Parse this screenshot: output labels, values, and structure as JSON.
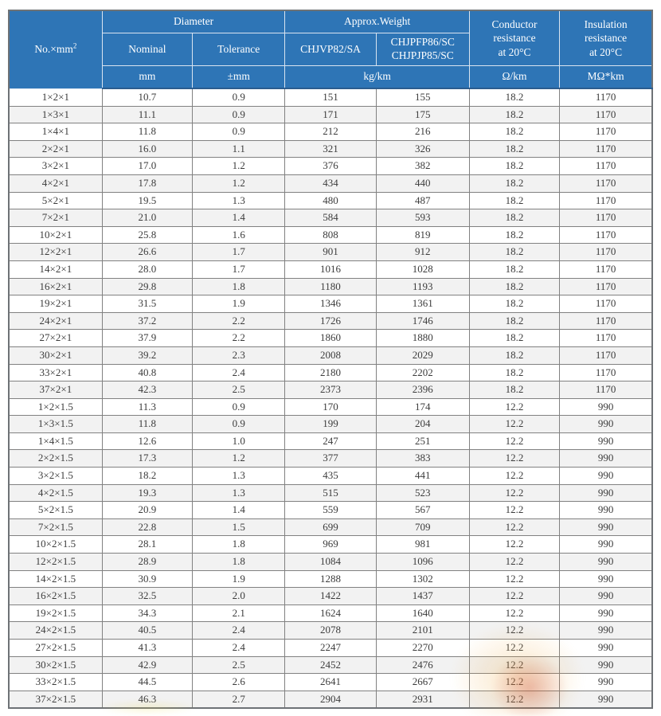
{
  "header": {
    "no_col": {
      "base": "No.×mm",
      "sup": "2"
    },
    "groups": {
      "diameter": "Diameter",
      "weight": "Approx.Weight"
    },
    "subs": {
      "nominal": "Nominal",
      "tolerance": "Tolerance",
      "weight_a": "CHJVP82/SA",
      "weight_b": "CHJPFP86/SC\nCHJPJP85/SC",
      "conductor": "Conductor\nresistance\nat 20°C",
      "insulation": "Insulation\nresistance\nat 20°C"
    },
    "units": {
      "mm": "mm",
      "tolerance": "±mm",
      "weight": "kg/km",
      "conductor": "Ω/km",
      "insulation": "MΩ*km"
    }
  },
  "table": {
    "column_keys": [
      "no",
      "nominal-diameter",
      "tolerance",
      "weight-chjvp82",
      "weight-chjpfp86",
      "conductor-resistance",
      "insulation-resistance"
    ],
    "rows": [
      [
        "1×2×1",
        "10.7",
        "0.9",
        "151",
        "155",
        "18.2",
        "1170"
      ],
      [
        "1×3×1",
        "11.1",
        "0.9",
        "171",
        "175",
        "18.2",
        "1170"
      ],
      [
        "1×4×1",
        "11.8",
        "0.9",
        "212",
        "216",
        "18.2",
        "1170"
      ],
      [
        "2×2×1",
        "16.0",
        "1.1",
        "321",
        "326",
        "18.2",
        "1170"
      ],
      [
        "3×2×1",
        "17.0",
        "1.2",
        "376",
        "382",
        "18.2",
        "1170"
      ],
      [
        "4×2×1",
        "17.8",
        "1.2",
        "434",
        "440",
        "18.2",
        "1170"
      ],
      [
        "5×2×1",
        "19.5",
        "1.3",
        "480",
        "487",
        "18.2",
        "1170"
      ],
      [
        "7×2×1",
        "21.0",
        "1.4",
        "584",
        "593",
        "18.2",
        "1170"
      ],
      [
        "10×2×1",
        "25.8",
        "1.6",
        "808",
        "819",
        "18.2",
        "1170"
      ],
      [
        "12×2×1",
        "26.6",
        "1.7",
        "901",
        "912",
        "18.2",
        "1170"
      ],
      [
        "14×2×1",
        "28.0",
        "1.7",
        "1016",
        "1028",
        "18.2",
        "1170"
      ],
      [
        "16×2×1",
        "29.8",
        "1.8",
        "1180",
        "1193",
        "18.2",
        "1170"
      ],
      [
        "19×2×1",
        "31.5",
        "1.9",
        "1346",
        "1361",
        "18.2",
        "1170"
      ],
      [
        "24×2×1",
        "37.2",
        "2.2",
        "1726",
        "1746",
        "18.2",
        "1170"
      ],
      [
        "27×2×1",
        "37.9",
        "2.2",
        "1860",
        "1880",
        "18.2",
        "1170"
      ],
      [
        "30×2×1",
        "39.2",
        "2.3",
        "2008",
        "2029",
        "18.2",
        "1170"
      ],
      [
        "33×2×1",
        "40.8",
        "2.4",
        "2180",
        "2202",
        "18.2",
        "1170"
      ],
      [
        "37×2×1",
        "42.3",
        "2.5",
        "2373",
        "2396",
        "18.2",
        "1170"
      ],
      [
        "1×2×1.5",
        "11.3",
        "0.9",
        "170",
        "174",
        "12.2",
        "990"
      ],
      [
        "1×3×1.5",
        "11.8",
        "0.9",
        "199",
        "204",
        "12.2",
        "990"
      ],
      [
        "1×4×1.5",
        "12.6",
        "1.0",
        "247",
        "251",
        "12.2",
        "990"
      ],
      [
        "2×2×1.5",
        "17.3",
        "1.2",
        "377",
        "383",
        "12.2",
        "990"
      ],
      [
        "3×2×1.5",
        "18.2",
        "1.3",
        "435",
        "441",
        "12.2",
        "990"
      ],
      [
        "4×2×1.5",
        "19.3",
        "1.3",
        "515",
        "523",
        "12.2",
        "990"
      ],
      [
        "5×2×1.5",
        "20.9",
        "1.4",
        "559",
        "567",
        "12.2",
        "990"
      ],
      [
        "7×2×1.5",
        "22.8",
        "1.5",
        "699",
        "709",
        "12.2",
        "990"
      ],
      [
        "10×2×1.5",
        "28.1",
        "1.8",
        "969",
        "981",
        "12.2",
        "990"
      ],
      [
        "12×2×1.5",
        "28.9",
        "1.8",
        "1084",
        "1096",
        "12.2",
        "990"
      ],
      [
        "14×2×1.5",
        "30.9",
        "1.9",
        "1288",
        "1302",
        "12.2",
        "990"
      ],
      [
        "16×2×1.5",
        "32.5",
        "2.0",
        "1422",
        "1437",
        "12.2",
        "990"
      ],
      [
        "19×2×1.5",
        "34.3",
        "2.1",
        "1624",
        "1640",
        "12.2",
        "990"
      ],
      [
        "24×2×1.5",
        "40.5",
        "2.4",
        "2078",
        "2101",
        "12.2",
        "990"
      ],
      [
        "27×2×1.5",
        "41.3",
        "2.4",
        "2247",
        "2270",
        "12.2",
        "990"
      ],
      [
        "30×2×1.5",
        "42.9",
        "2.5",
        "2452",
        "2476",
        "12.2",
        "990"
      ],
      [
        "33×2×1.5",
        "44.5",
        "2.6",
        "2641",
        "2667",
        "12.2",
        "990"
      ],
      [
        "37×2×1.5",
        "46.3",
        "2.7",
        "2904",
        "2931",
        "12.2",
        "990"
      ]
    ]
  },
  "colors": {
    "header_bg": "#2e75b6",
    "header_text": "#ffffff",
    "row_alt_bg": "#f2f2f2",
    "border": "#818181",
    "watermark": [
      "#eea83c",
      "#c63e28",
      "#e8d44a"
    ]
  }
}
